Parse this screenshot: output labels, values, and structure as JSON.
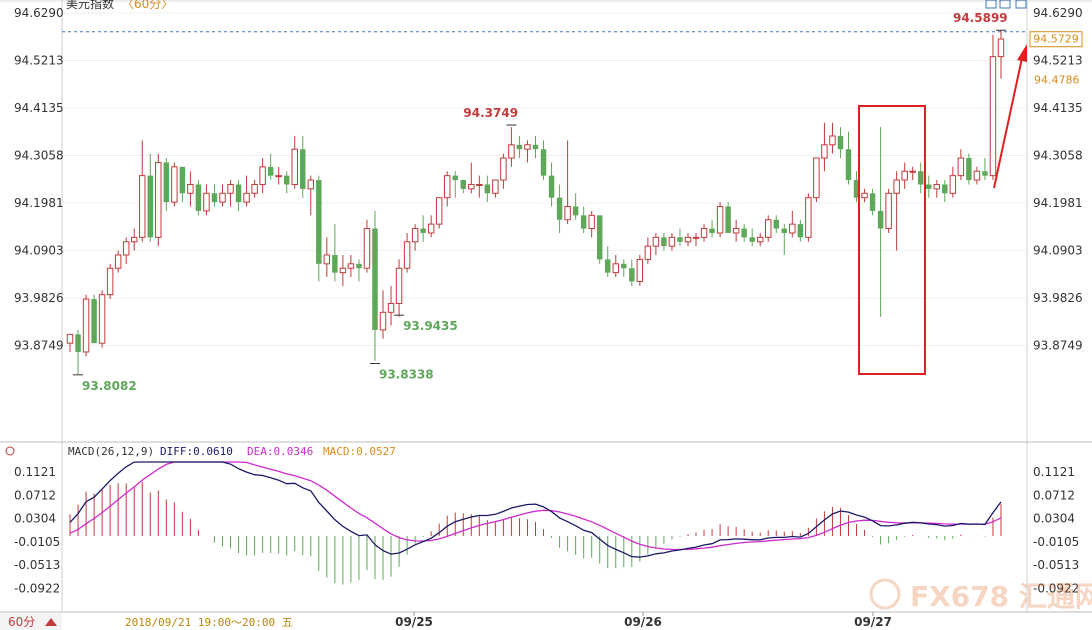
{
  "title": "美元指数",
  "timeframe_tag": "60分",
  "footer": {
    "period_button": "60分",
    "cursor_time": "2018/09/21 19:00～20:00 五",
    "watermark_text": "FX678 汇通网"
  },
  "colors": {
    "up": "#c23b3b",
    "down": "#5fa85a",
    "diff_line": "#1a1a66",
    "dea_line": "#d02ad0",
    "last_price_box": "#d98c1a",
    "annotation_box": "#e02020",
    "arrow": "#e02020"
  },
  "chart_data": [
    {
      "type": "candlestick",
      "title": "美元指数",
      "ylim": [
        93.776,
        94.629
      ],
      "y_ticks": [
        "94.6290",
        "94.5213",
        "94.4135",
        "94.3058",
        "94.1981",
        "94.0903",
        "93.9826",
        "93.8749"
      ],
      "x_date_labels": [
        "09/25",
        "09/26",
        "09/27"
      ],
      "last_price": "94.5729",
      "right_price_label": "94.4786",
      "annotations": [
        {
          "label": "93.8082",
          "kind": "low"
        },
        {
          "label": "93.8338",
          "kind": "low"
        },
        {
          "label": "94.3749",
          "kind": "high"
        },
        {
          "label": "93.9435",
          "kind": "low"
        },
        {
          "label": "94.5899",
          "kind": "high"
        }
      ],
      "candles": [
        [
          93.88,
          93.9,
          93.86,
          93.9
        ],
        [
          93.9,
          93.91,
          93.81,
          93.86
        ],
        [
          93.86,
          93.99,
          93.85,
          93.98
        ],
        [
          93.98,
          93.99,
          93.88,
          93.88
        ],
        [
          93.88,
          94.0,
          93.87,
          93.99
        ],
        [
          93.99,
          94.06,
          93.98,
          94.05
        ],
        [
          94.05,
          94.09,
          94.04,
          94.08
        ],
        [
          94.08,
          94.12,
          94.06,
          94.11
        ],
        [
          94.11,
          94.14,
          94.09,
          94.12
        ],
        [
          94.12,
          94.34,
          94.11,
          94.26
        ],
        [
          94.26,
          94.31,
          94.11,
          94.12
        ],
        [
          94.12,
          94.31,
          94.1,
          94.29
        ],
        [
          94.29,
          94.3,
          94.18,
          94.2
        ],
        [
          94.2,
          94.29,
          94.19,
          94.28
        ],
        [
          94.28,
          94.28,
          94.2,
          94.22
        ],
        [
          94.22,
          94.27,
          94.19,
          94.24
        ],
        [
          94.24,
          94.25,
          94.17,
          94.18
        ],
        [
          94.18,
          94.24,
          94.17,
          94.22
        ],
        [
          94.22,
          94.24,
          94.19,
          94.2
        ],
        [
          94.2,
          94.24,
          94.19,
          94.22
        ],
        [
          94.22,
          94.25,
          94.19,
          94.24
        ],
        [
          94.24,
          94.25,
          94.18,
          94.2
        ],
        [
          94.2,
          94.26,
          94.19,
          94.22
        ],
        [
          94.22,
          94.25,
          94.21,
          94.24
        ],
        [
          94.24,
          94.3,
          94.22,
          94.28
        ],
        [
          94.28,
          94.31,
          94.25,
          94.26
        ],
        [
          94.26,
          94.28,
          94.24,
          94.26
        ],
        [
          94.26,
          94.27,
          94.22,
          94.24
        ],
        [
          94.24,
          94.35,
          94.23,
          94.32
        ],
        [
          94.32,
          94.35,
          94.21,
          94.23
        ],
        [
          94.23,
          94.26,
          94.17,
          94.25
        ],
        [
          94.25,
          94.26,
          94.02,
          94.06
        ],
        [
          94.06,
          94.12,
          94.03,
          94.08
        ],
        [
          94.08,
          94.15,
          94.02,
          94.04
        ],
        [
          94.04,
          94.08,
          94.01,
          94.05
        ],
        [
          94.05,
          94.08,
          94.03,
          94.06
        ],
        [
          94.06,
          94.07,
          94.02,
          94.05
        ],
        [
          94.05,
          94.16,
          94.04,
          94.14
        ],
        [
          94.14,
          94.18,
          93.84,
          93.91
        ],
        [
          93.91,
          94.0,
          93.89,
          93.95
        ],
        [
          93.95,
          94.01,
          93.92,
          93.97
        ],
        [
          93.97,
          94.07,
          93.94,
          94.05
        ],
        [
          94.05,
          94.13,
          94.04,
          94.11
        ],
        [
          94.11,
          94.15,
          94.09,
          94.14
        ],
        [
          94.14,
          94.17,
          94.11,
          94.13
        ],
        [
          94.13,
          94.17,
          94.12,
          94.15
        ],
        [
          94.15,
          94.21,
          94.14,
          94.21
        ],
        [
          94.21,
          94.27,
          94.19,
          94.26
        ],
        [
          94.26,
          94.27,
          94.21,
          94.25
        ],
        [
          94.25,
          94.25,
          94.22,
          94.23
        ],
        [
          94.23,
          94.29,
          94.22,
          94.24
        ],
        [
          94.24,
          94.26,
          94.21,
          94.24
        ],
        [
          94.24,
          94.26,
          94.2,
          94.22
        ],
        [
          94.22,
          94.25,
          94.21,
          94.25
        ],
        [
          94.25,
          94.31,
          94.23,
          94.3
        ],
        [
          94.3,
          94.37,
          94.28,
          94.33
        ],
        [
          94.33,
          94.35,
          94.3,
          94.32
        ],
        [
          94.32,
          94.34,
          94.29,
          94.33
        ],
        [
          94.33,
          94.35,
          94.3,
          94.32
        ],
        [
          94.32,
          94.34,
          94.25,
          94.26
        ],
        [
          94.26,
          94.29,
          94.19,
          94.21
        ],
        [
          94.21,
          94.24,
          94.13,
          94.16
        ],
        [
          94.16,
          94.34,
          94.15,
          94.19
        ],
        [
          94.19,
          94.22,
          94.16,
          94.17
        ],
        [
          94.17,
          94.19,
          94.13,
          94.14
        ],
        [
          94.14,
          94.18,
          94.12,
          94.17
        ],
        [
          94.17,
          94.17,
          94.06,
          94.07
        ],
        [
          94.07,
          94.1,
          94.03,
          94.04
        ],
        [
          94.04,
          94.08,
          94.03,
          94.06
        ],
        [
          94.06,
          94.07,
          94.03,
          94.05
        ],
        [
          94.05,
          94.07,
          94.01,
          94.02
        ],
        [
          94.02,
          94.08,
          94.01,
          94.07
        ],
        [
          94.07,
          94.12,
          94.06,
          94.1
        ],
        [
          94.1,
          94.13,
          94.08,
          94.12
        ],
        [
          94.12,
          94.13,
          94.09,
          94.1
        ],
        [
          94.1,
          94.13,
          94.09,
          94.12
        ],
        [
          94.12,
          94.14,
          94.1,
          94.11
        ],
        [
          94.11,
          94.13,
          94.1,
          94.12
        ],
        [
          94.12,
          94.13,
          94.1,
          94.12
        ],
        [
          94.12,
          94.15,
          94.11,
          94.14
        ],
        [
          94.14,
          94.16,
          94.12,
          94.13
        ],
        [
          94.13,
          94.2,
          94.12,
          94.19
        ],
        [
          94.19,
          94.2,
          94.13,
          94.13
        ],
        [
          94.13,
          94.16,
          94.11,
          94.14
        ],
        [
          94.14,
          94.15,
          94.11,
          94.12
        ],
        [
          94.12,
          94.14,
          94.1,
          94.11
        ],
        [
          94.11,
          94.13,
          94.1,
          94.12
        ],
        [
          94.12,
          94.17,
          94.11,
          94.16
        ],
        [
          94.16,
          94.17,
          94.13,
          94.14
        ],
        [
          94.14,
          94.15,
          94.08,
          94.13
        ],
        [
          94.13,
          94.18,
          94.12,
          94.15
        ],
        [
          94.15,
          94.16,
          94.11,
          94.12
        ],
        [
          94.12,
          94.22,
          94.11,
          94.21
        ],
        [
          94.21,
          94.3,
          94.2,
          94.3
        ],
        [
          94.3,
          94.38,
          94.27,
          94.33
        ],
        [
          94.33,
          94.38,
          94.31,
          94.35
        ],
        [
          94.35,
          94.37,
          94.3,
          94.32
        ],
        [
          94.32,
          94.36,
          94.24,
          94.25
        ],
        [
          94.25,
          94.27,
          94.2,
          94.21
        ],
        [
          94.21,
          94.23,
          94.2,
          94.22
        ],
        [
          94.22,
          94.23,
          94.17,
          94.18
        ],
        [
          94.18,
          94.37,
          93.94,
          94.14
        ],
        [
          94.14,
          94.23,
          94.13,
          94.22
        ],
        [
          94.22,
          94.27,
          94.09,
          94.25
        ],
        [
          94.25,
          94.29,
          94.23,
          94.27
        ],
        [
          94.27,
          94.28,
          94.25,
          94.27
        ],
        [
          94.27,
          94.29,
          94.22,
          94.24
        ],
        [
          94.24,
          94.26,
          94.21,
          94.23
        ],
        [
          94.23,
          94.25,
          94.21,
          94.24
        ],
        [
          94.24,
          94.25,
          94.2,
          94.22
        ],
        [
          94.22,
          94.28,
          94.21,
          94.26
        ],
        [
          94.26,
          94.32,
          94.25,
          94.3
        ],
        [
          94.3,
          94.31,
          94.24,
          94.25
        ],
        [
          94.25,
          94.28,
          94.24,
          94.27
        ],
        [
          94.27,
          94.3,
          94.25,
          94.26
        ],
        [
          94.26,
          94.58,
          94.25,
          94.53
        ],
        [
          94.53,
          94.59,
          94.48,
          94.57
        ]
      ]
    },
    {
      "type": "macd",
      "label": "MACD(26,12,9)",
      "diff_label": "DIFF:0.0610",
      "dea_label": "DEA:0.0346",
      "macd_label": "MACD:0.0527",
      "ylim": [
        -0.13,
        0.13
      ],
      "y_ticks": [
        "0.1121",
        "0.0712",
        "0.0304",
        "-0.0105",
        "-0.0513",
        "-0.0922"
      ]
    }
  ]
}
